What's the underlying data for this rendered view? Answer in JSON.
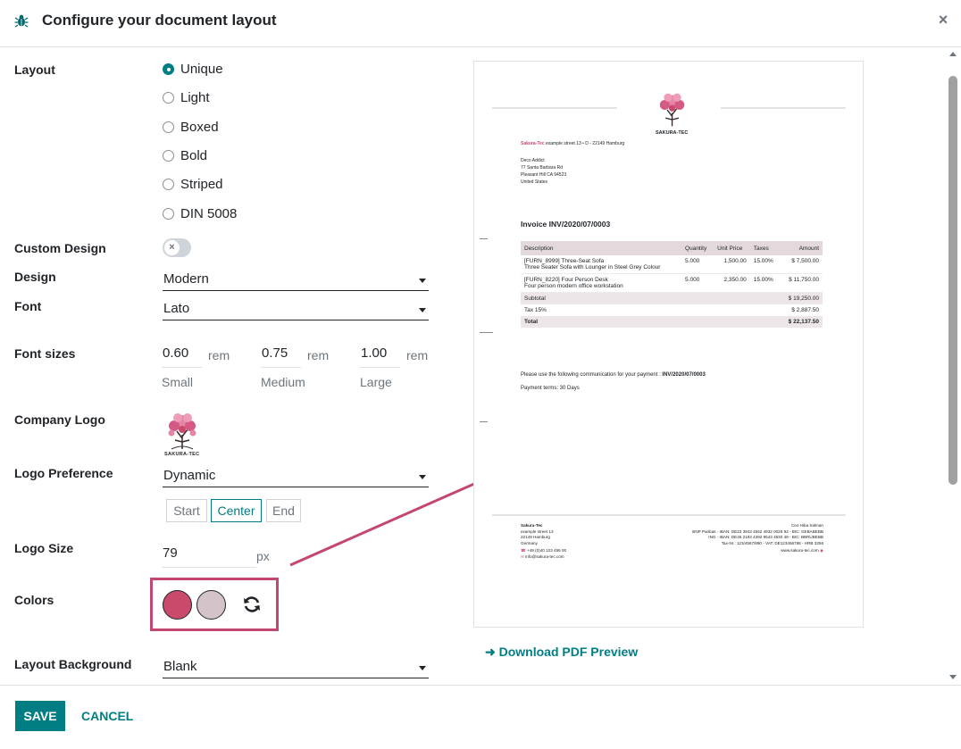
{
  "header": {
    "title": "Configure your document layout",
    "close_label": "×"
  },
  "labels": {
    "layout": "Layout",
    "custom_design": "Custom Design",
    "design": "Design",
    "font": "Font",
    "font_sizes": "Font sizes",
    "company_logo": "Company Logo",
    "logo_preference": "Logo Preference",
    "logo_size": "Logo Size",
    "colors": "Colors",
    "layout_background": "Layout Background"
  },
  "layout_options": [
    {
      "label": "Unique",
      "selected": true
    },
    {
      "label": "Light",
      "selected": false
    },
    {
      "label": "Boxed",
      "selected": false
    },
    {
      "label": "Bold",
      "selected": false
    },
    {
      "label": "Striped",
      "selected": false
    },
    {
      "label": "DIN 5008",
      "selected": false
    }
  ],
  "custom_design": {
    "enabled": false,
    "knob": "×"
  },
  "design": {
    "value": "Modern"
  },
  "font": {
    "value": "Lato"
  },
  "font_sizes": [
    {
      "value": "0.60",
      "unit": "rem",
      "label": "Small"
    },
    {
      "value": "0.75",
      "unit": "rem",
      "label": "Medium"
    },
    {
      "value": "1.00",
      "unit": "rem",
      "label": "Large"
    }
  ],
  "company_logo": {
    "text": "SAKURA-TEC"
  },
  "logo_preference": {
    "value": "Dynamic",
    "align_options": [
      "Start",
      "Center",
      "End"
    ],
    "active": "Center"
  },
  "logo_size": {
    "value": "79",
    "unit": "px"
  },
  "colors": {
    "primary": "#c94a6b",
    "secondary": "#d4c3c9",
    "highlight": "#c4476f"
  },
  "layout_background": {
    "value": "Blank"
  },
  "preview": {
    "company": "Sakura-Tec",
    "address_line": "example street 13  •  D - 22149 Hamburg",
    "customer": [
      "Deco Addict",
      "77 Santa Barbara Rd",
      "Pleasant Hill CA 94523",
      "United States"
    ],
    "invoice_title": "Invoice INV/2020/07/0003",
    "columns": [
      "Description",
      "Quantity",
      "Unit Price",
      "Taxes",
      "Amount"
    ],
    "lines": [
      {
        "desc1": "[FURN_8999] Three-Seat Sofa",
        "desc2": "Three Seater Sofa with Lounger in Steel Grey Colour",
        "qty": "5.000",
        "price": "1,500.00",
        "tax": "15.00%",
        "amount": "$ 7,500.00"
      },
      {
        "desc1": "[FURN_8220] Four Person Desk",
        "desc2": "Four person modern office workstation",
        "qty": "5.000",
        "price": "2,350.00",
        "tax": "15.00%",
        "amount": "$ 11,750.00"
      }
    ],
    "subtotal_label": "Subtotal",
    "subtotal": "$ 19,250.00",
    "tax_label": "Tax 15%",
    "tax": "$ 2,887.50",
    "total_label": "Total",
    "total": "$ 22,137.50",
    "payment_comm_prefix": "Please use the following communication for your payment : ",
    "payment_comm_ref": "INV/2020/07/0003",
    "payment_terms": "Payment terms: 30 Days",
    "footer_left": [
      "Sakura-Tec",
      "example street 13",
      "22149 Hamburg",
      "Germany"
    ],
    "footer_phone": "+49 (0)40 123 456 00",
    "footer_email": "info@sakura-tec.com",
    "footer_right": [
      "Ceo Hiba Salman",
      "BNP Paribas  -  IBAN: DE23 3943 4552 4932 0025 93  -  BIC: GEBABEBB",
      "ING  -  IBAN: DE45 2193 4392 9543 4930 49  -  BIC: BBRUBEBB",
      "Tax-Nr.: 123/4567/890  -  VAT: DE123456788  -  HRB 3256",
      "www.sakura-tec.com"
    ],
    "download_label": "Download PDF Preview"
  },
  "footer": {
    "save": "SAVE",
    "cancel": "CANCEL"
  }
}
